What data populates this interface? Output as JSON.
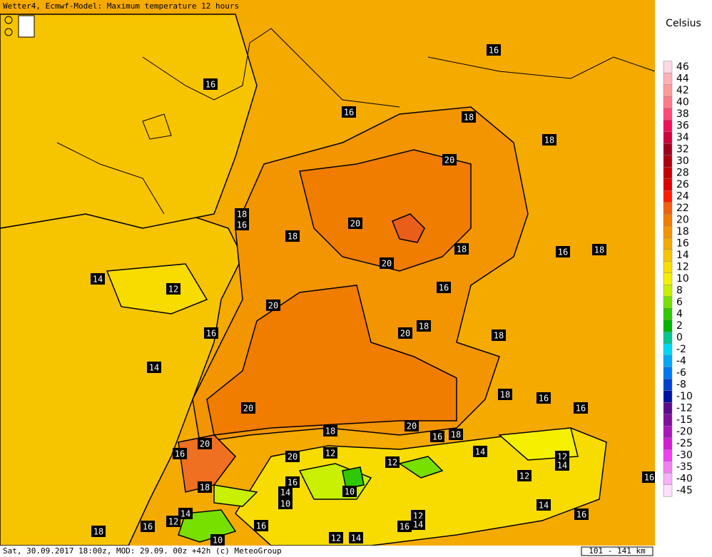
{
  "header": {
    "title": "Wetter4, Ecmwf-Model: Maximum temperature 12 hours"
  },
  "legend": {
    "unit": "Celsius",
    "levels": [
      {
        "label": "46",
        "color": "#ffd7e6"
      },
      {
        "label": "44",
        "color": "#ffb0b8"
      },
      {
        "label": "42",
        "color": "#ff9a9a"
      },
      {
        "label": "40",
        "color": "#ff7a8c"
      },
      {
        "label": "38",
        "color": "#ff4a78"
      },
      {
        "label": "36",
        "color": "#f0105a"
      },
      {
        "label": "34",
        "color": "#d0003c"
      },
      {
        "label": "32",
        "color": "#a00020"
      },
      {
        "label": "30",
        "color": "#b00010"
      },
      {
        "label": "28",
        "color": "#c80000"
      },
      {
        "label": "26",
        "color": "#e00000"
      },
      {
        "label": "24",
        "color": "#ff1a00"
      },
      {
        "label": "22",
        "color": "#f06010"
      },
      {
        "label": "20",
        "color": "#f07c00"
      },
      {
        "label": "18",
        "color": "#f39500"
      },
      {
        "label": "16",
        "color": "#f5aa00"
      },
      {
        "label": "14",
        "color": "#f7c400"
      },
      {
        "label": "12",
        "color": "#f8dc00"
      },
      {
        "label": "10",
        "color": "#f5f000"
      },
      {
        "label": "8",
        "color": "#c8f000"
      },
      {
        "label": "6",
        "color": "#78e000"
      },
      {
        "label": "4",
        "color": "#30c800"
      },
      {
        "label": "2",
        "color": "#00b400"
      },
      {
        "label": "0",
        "color": "#00c890"
      },
      {
        "label": "-2",
        "color": "#00d8f0"
      },
      {
        "label": "-4",
        "color": "#00a8f8"
      },
      {
        "label": "-6",
        "color": "#0078f0"
      },
      {
        "label": "-8",
        "color": "#0040d0"
      },
      {
        "label": "-10",
        "color": "#0010a0"
      },
      {
        "label": "-12",
        "color": "#5a0a8a"
      },
      {
        "label": "-15",
        "color": "#80109a"
      },
      {
        "label": "-20",
        "color": "#a818b8"
      },
      {
        "label": "-25",
        "color": "#d020d0"
      },
      {
        "label": "-30",
        "color": "#f040f0"
      },
      {
        "label": "-35",
        "color": "#f080f0"
      },
      {
        "label": "-40",
        "color": "#f8b0f8"
      },
      {
        "label": "-45",
        "color": "#fce0fc"
      }
    ]
  },
  "labels": [
    "16",
    "16",
    "16",
    "18",
    "18",
    "20",
    "18",
    "16",
    "18",
    "20",
    "18",
    "16",
    "18",
    "20",
    "14",
    "12",
    "16",
    "20",
    "18",
    "20",
    "16",
    "18",
    "14",
    "18",
    "16",
    "16",
    "20",
    "20",
    "18",
    "16",
    "18",
    "16",
    "20",
    "20",
    "12",
    "14",
    "12",
    "12",
    "14",
    "16",
    "10",
    "12",
    "16",
    "18",
    "14",
    "10",
    "14",
    "14",
    "12",
    "12",
    "14",
    "16",
    "18",
    "16",
    "16",
    "16",
    "12",
    "14",
    "10"
  ],
  "footer": {
    "info": "Sat, 30.09.2017 18:00z, MOD: 29.09. 00z +42h (c) MeteoGroup",
    "scale": "101 - 141 km"
  }
}
